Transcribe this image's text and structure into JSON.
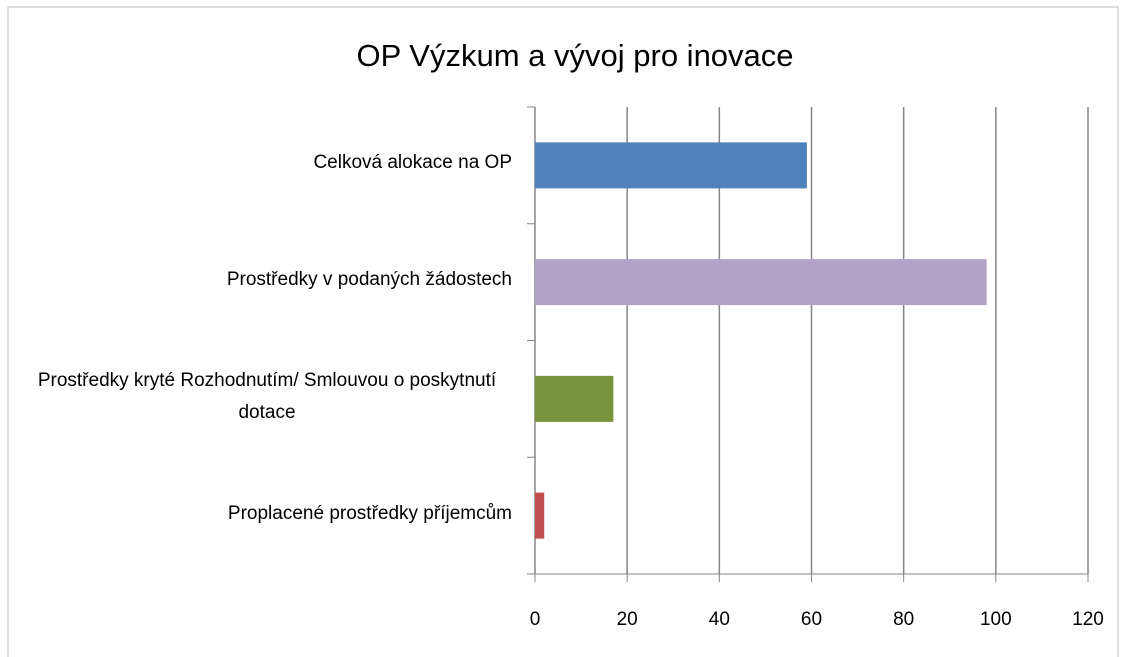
{
  "chart_data": {
    "type": "bar",
    "orientation": "horizontal",
    "title": "OP Výzkum a vývoj pro inovace",
    "categories": [
      "Celková alokace  na OP",
      "Prostředky v podaných žádostech",
      "Prostředky kryté Rozhodnutím/  Smlouvou o poskytnutí dotace",
      "Proplacené prostředky příjemcům"
    ],
    "values": [
      59,
      98,
      17,
      2
    ],
    "colors": [
      "#4f81bd",
      "#b3a2c7",
      "#77933c",
      "#c0504d"
    ],
    "xlim": [
      0,
      120
    ],
    "xticks": [
      0,
      20,
      40,
      60,
      80,
      100,
      120
    ],
    "grid": true
  }
}
